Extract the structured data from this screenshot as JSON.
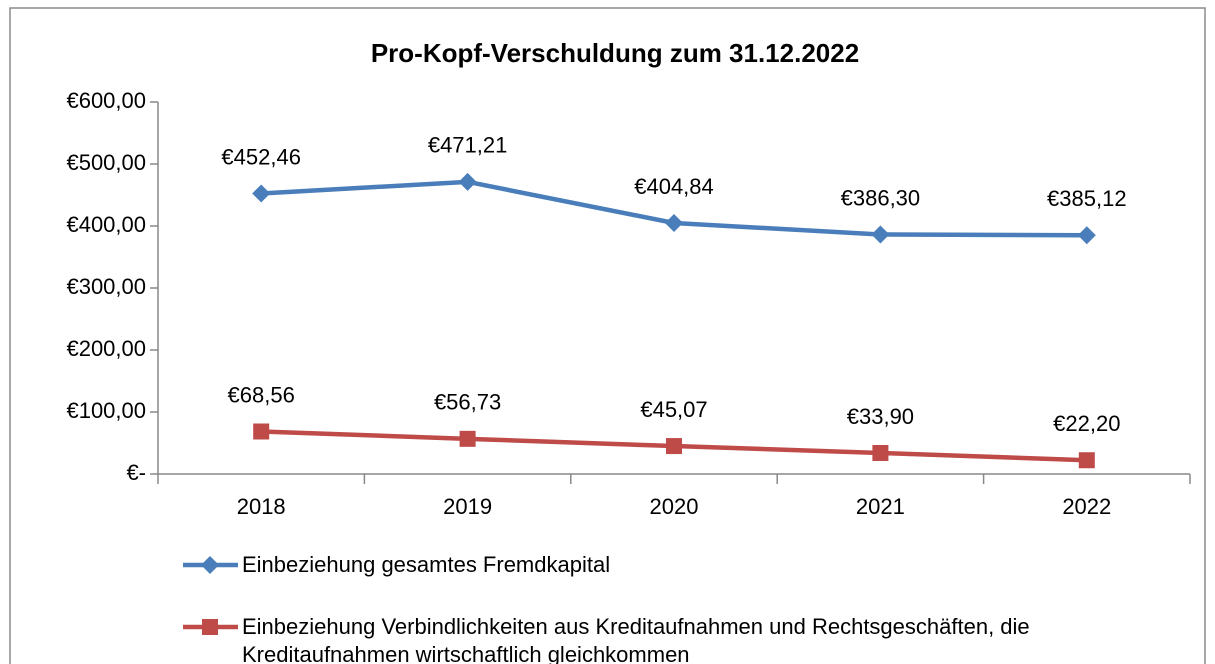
{
  "chart_data": {
    "type": "line",
    "title": "Pro-Kopf-Verschuldung zum 31.12.2022",
    "categories": [
      "2018",
      "2019",
      "2020",
      "2021",
      "2022"
    ],
    "series": [
      {
        "name": "Einbeziehung gesamtes Fremdkapital",
        "color": "#4a7ebb",
        "marker": "diamond",
        "values": [
          452.46,
          471.21,
          404.84,
          386.3,
          385.12
        ],
        "value_labels": [
          "€452,46",
          "€471,21",
          "€404,84",
          "€386,30",
          "€385,12"
        ]
      },
      {
        "name": "Einbeziehung Verbindlichkeiten aus Kreditaufnahmen und Rechtsgeschäften, die Kreditaufnahmen wirtschaftlich gleichkommen",
        "color": "#be4b48",
        "marker": "square",
        "values": [
          68.56,
          56.73,
          45.07,
          33.9,
          22.2
        ],
        "value_labels": [
          "€68,56",
          "€56,73",
          "€45,07",
          "€33,90",
          "€22,20"
        ]
      }
    ],
    "ylim": [
      0,
      600
    ],
    "yticks": [
      {
        "value": 0,
        "label": "€-"
      },
      {
        "value": 100,
        "label": "€100,00"
      },
      {
        "value": 200,
        "label": "€200,00"
      },
      {
        "value": 300,
        "label": "€300,00"
      },
      {
        "value": 400,
        "label": "€400,00"
      },
      {
        "value": 500,
        "label": "€500,00"
      },
      {
        "value": 600,
        "label": "€600,00"
      }
    ],
    "grid": false,
    "legend": "bottom"
  }
}
